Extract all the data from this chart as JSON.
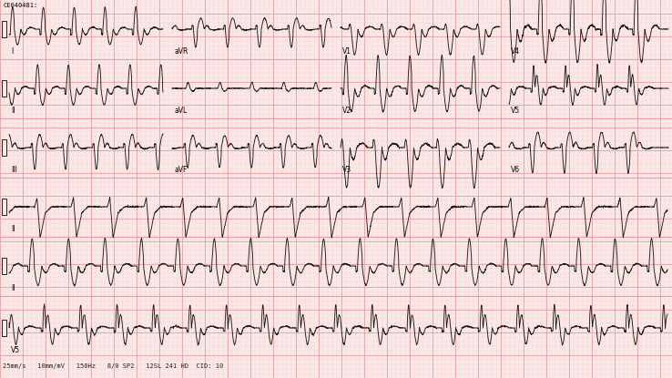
{
  "bg_color": "#fce8e8",
  "grid_major_color": "#e8a0a0",
  "grid_minor_color": "#f5d0d0",
  "line_color": "#1a1a1a",
  "line_width": 0.65,
  "fig_width": 7.38,
  "fig_height": 4.15,
  "dpi": 100,
  "header_text": "CE040481:",
  "footer_text": "25mm/s   10mm/mV   150Hz   8/0 SP2   12SL 241 HD  CID: 10",
  "row1_labels": [
    "I",
    "aVR",
    "V1",
    "V4"
  ],
  "row2_labels": [
    "II",
    "aVL",
    "V2",
    "V5"
  ],
  "row3_labels": [
    "III",
    "aVF",
    "V3",
    "V6"
  ],
  "rhythm_labels": [
    "II",
    "II",
    "V5"
  ]
}
